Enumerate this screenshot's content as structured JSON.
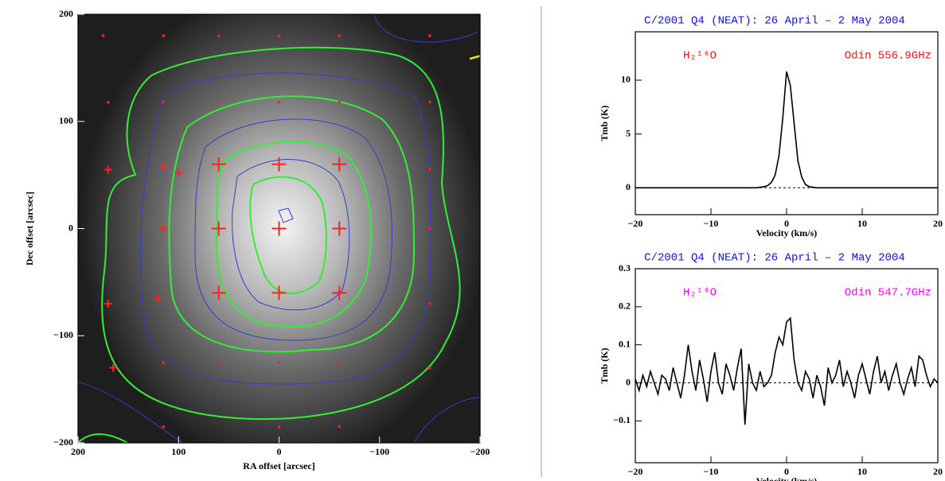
{
  "chart_data": [
    {
      "type": "scatter",
      "xlabel": "RA offset [arcsec]",
      "ylabel": "Dec offset [arcsec]",
      "xlim": [
        200,
        -200
      ],
      "ylim": [
        -200,
        200
      ],
      "xticks": [
        200,
        100,
        0,
        {
          "value": -100,
          "label": "−100"
        },
        {
          "value": -200,
          "label": "−200"
        }
      ],
      "yticks": [
        {
          "value": -200,
          "label": "−200"
        },
        {
          "value": -100,
          "label": "−100"
        },
        0,
        100,
        200
      ],
      "series": [
        {
          "color": "#ff2020",
          "marker": "large-plus",
          "x": [
            60,
            0,
            -60,
            60,
            0,
            -60,
            60,
            0,
            -60
          ],
          "values": [
            60,
            60,
            60,
            0,
            0,
            0,
            -60,
            -60,
            -60
          ]
        },
        {
          "color": "#ff2020",
          "marker": "small-plus",
          "x": [
            170,
            115,
            100,
            115,
            120,
            170,
            165
          ],
          "values": [
            55,
            58,
            52,
            0,
            -65,
            -70,
            -130
          ]
        },
        {
          "color": "#ff2020",
          "marker": "dot",
          "x": [
            175,
            115,
            60,
            0,
            -60,
            -150,
            170,
            115,
            60,
            0,
            -60,
            -150,
            -150,
            -150,
            -150,
            115,
            60,
            0,
            -60,
            -150,
            115,
            0,
            -60
          ],
          "values": [
            180,
            180,
            180,
            180,
            180,
            180,
            118,
            118,
            118,
            118,
            118,
            118,
            55,
            0,
            -70,
            -125,
            -125,
            -125,
            -125,
            -130,
            -185,
            -185,
            -185
          ]
        }
      ]
    },
    {
      "type": "line",
      "title": "C/2001 Q4 (NEAT): 26 April – 2 May 2004",
      "annotations": [
        "H₂¹⁶O",
        "Odin 556.9GHz"
      ],
      "annotation_color": "#ff1010",
      "xlabel": "Velocity (km/s)",
      "ylabel": "Tmb (K)",
      "xlim": [
        -20,
        20
      ],
      "ylim": [
        -2.5,
        14.5
      ],
      "xticks": [
        {
          "value": -20,
          "label": "−20"
        },
        {
          "value": -10,
          "label": "−10"
        },
        0,
        10,
        20
      ],
      "yticks": [
        0,
        5,
        10
      ],
      "series": [
        {
          "color": "#000000",
          "x": [
            -20,
            -4,
            -3,
            -2.5,
            -2,
            -1.5,
            -1,
            -0.5,
            0,
            0.5,
            1,
            1.5,
            2,
            2.5,
            3,
            4,
            20
          ],
          "values": [
            0,
            0,
            0.1,
            0.2,
            0.5,
            1.2,
            3,
            6.5,
            10.8,
            9.5,
            6,
            2.5,
            1,
            0.3,
            0.1,
            0,
            0
          ]
        }
      ]
    },
    {
      "type": "line",
      "title": "C/2001 Q4 (NEAT): 26 April – 2 May 2004",
      "annotations": [
        "H₂¹⁸O",
        "Odin 547.7GHz"
      ],
      "annotation_color": "#ff00ff",
      "xlabel": "Velocity (km/s)",
      "ylabel": "Tmb (K)",
      "xlim": [
        -20,
        20
      ],
      "ylim": [
        -0.21,
        0.3
      ],
      "xticks": [
        {
          "value": -20,
          "label": "−20"
        },
        {
          "value": -10,
          "label": "−10"
        },
        0,
        10,
        20
      ],
      "yticks": [
        {
          "value": -0.1,
          "label": "−0.1"
        },
        0,
        0.1,
        0.2,
        0.3
      ],
      "series": [
        {
          "color": "#000000",
          "x": [
            -20,
            -19.5,
            -19,
            -18.5,
            -18,
            -17.5,
            -17,
            -16.5,
            -16,
            -15.5,
            -15,
            -14.5,
            -14,
            -13.5,
            -13,
            -12.5,
            -12,
            -11.5,
            -11,
            -10.5,
            -10,
            -9.5,
            -9,
            -8.5,
            -8,
            -7.5,
            -7,
            -6.5,
            -6,
            -5.5,
            -5,
            -4.5,
            -4,
            -3.5,
            -3,
            -2.5,
            -2,
            -1.5,
            -1,
            -0.5,
            0,
            0.5,
            1,
            1.5,
            2,
            2.5,
            3,
            3.5,
            4,
            4.5,
            5,
            5.5,
            6,
            6.5,
            7,
            7.5,
            8,
            8.5,
            9,
            9.5,
            10,
            10.5,
            11,
            11.5,
            12,
            12.5,
            13,
            13.5,
            14,
            14.5,
            15,
            15.5,
            16,
            16.5,
            17,
            17.5,
            18,
            18.5,
            19,
            19.5,
            20
          ],
          "values": [
            0.01,
            -0.02,
            0.02,
            -0.01,
            0.03,
            0.0,
            -0.03,
            0.02,
            0.01,
            -0.02,
            0.04,
            0.0,
            -0.04,
            0.02,
            0.1,
            0.03,
            -0.02,
            0.06,
            0.01,
            -0.05,
            0.03,
            0.08,
            0.0,
            -0.03,
            0.05,
            0.02,
            -0.02,
            0.04,
            0.09,
            -0.11,
            0.05,
            0.0,
            -0.02,
            0.03,
            -0.01,
            0.0,
            0.02,
            0.08,
            0.12,
            0.1,
            0.16,
            0.17,
            0.06,
            0.0,
            -0.02,
            0.03,
            0.01,
            -0.04,
            0.02,
            -0.01,
            -0.06,
            0.04,
            0.0,
            0.02,
            0.06,
            -0.01,
            0.03,
            0.0,
            -0.04,
            0.02,
            0.05,
            0.01,
            -0.03,
            0.03,
            0.07,
            0.0,
            0.03,
            -0.02,
            0.02,
            0.05,
            0.0,
            -0.03,
            0.01,
            0.04,
            -0.01,
            0.07,
            0.06,
            0.02,
            -0.01,
            0.01,
            0.0
          ]
        }
      ]
    }
  ]
}
